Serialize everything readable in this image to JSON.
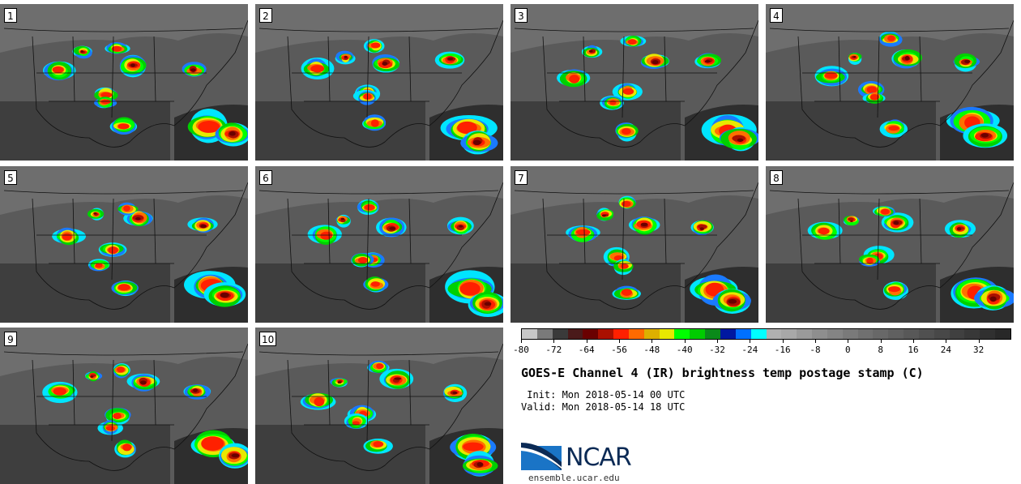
{
  "panels": [
    {
      "label": "1"
    },
    {
      "label": "2"
    },
    {
      "label": "3"
    },
    {
      "label": "4"
    },
    {
      "label": "5"
    },
    {
      "label": "6"
    },
    {
      "label": "7"
    },
    {
      "label": "8"
    },
    {
      "label": "9"
    },
    {
      "label": "10"
    }
  ],
  "colorbar": {
    "colors": [
      "#c8c8c8",
      "#7a7a7a",
      "#3a3a3a",
      "#4a1a1a",
      "#6a0000",
      "#aa1000",
      "#ff2000",
      "#ff6a00",
      "#ddb000",
      "#e8e800",
      "#00ff00",
      "#00cc00",
      "#0a8a1a",
      "#0018a0",
      "#0070ff",
      "#00ffff",
      "#b0b0b0",
      "#a8a8a8",
      "#9a9a9a",
      "#8e8e8e",
      "#848484",
      "#7a7a7a",
      "#707070",
      "#686868",
      "#606060",
      "#585858",
      "#505050",
      "#484848",
      "#404040",
      "#383838",
      "#303030",
      "#282828"
    ],
    "min": -80,
    "max": 40,
    "ticks": [
      "-80",
      "-72",
      "-64",
      "-56",
      "-48",
      "-40",
      "-32",
      "-24",
      "-16",
      "-8",
      "0",
      "8",
      "16",
      "24",
      "32"
    ]
  },
  "title": "GOES-E Channel 4 (IR) brightness temp postage stamp (C)",
  "init": " Init: Mon 2018-05-14 00 UTC",
  "valid": "Valid: Mon 2018-05-14 18 UTC",
  "logo": {
    "text": "NCAR",
    "site": "ensemble.ucar.edu",
    "icon": "ncar-swoosh-icon"
  }
}
